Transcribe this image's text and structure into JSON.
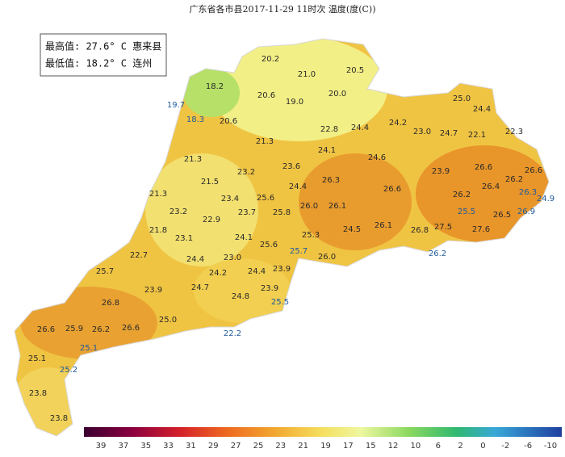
{
  "title": "广东省各市县2017-11-29 11时次 温度(度(C))",
  "summary": [
    "最高值: 27.6° C 惠来县",
    "最低值: 18.2° C 连州"
  ],
  "stations": [
    "20.2",
    "21.0",
    "20.5",
    "18.2",
    "20.6",
    "19.0",
    "20.0",
    "19.7",
    "18.3",
    "20.6",
    "25.0",
    "24.4",
    "22.8",
    "24.4",
    "24.2",
    "23.0",
    "24.7",
    "22.1",
    "22.3",
    "21.3",
    "24.1",
    "24.6",
    "21.3",
    "23.6",
    "23.2",
    "23.9",
    "26.6",
    "26.6",
    "26.2",
    "26.3",
    "21.5",
    "24.4",
    "26.4",
    "26.3",
    "24.9",
    "26.6",
    "21.3",
    "25.6",
    "23.4",
    "26.2",
    "26.0",
    "26.1",
    "23.2",
    "23.7",
    "25.8",
    "25.5",
    "26.5",
    "26.9",
    "22.9",
    "24.5",
    "26.1",
    "26.8",
    "27.5",
    "27.6",
    "21.8",
    "25.3",
    "23.1",
    "24.1",
    "25.6",
    "25.7",
    "22.7",
    "24.4",
    "23.0",
    "26.0",
    "26.2",
    "25.7",
    "24.2",
    "24.4",
    "23.9",
    "26.8",
    "23.9",
    "24.7",
    "23.9",
    "24.8",
    "25.5",
    "25.0",
    "26.6",
    "25.9",
    "26.2",
    "26.6",
    "22.2",
    "25.1",
    "25.1",
    "25.2",
    "23.8",
    "23.8"
  ],
  "legend": [
    "39",
    "37",
    "35",
    "33",
    "31",
    "29",
    "27",
    "25",
    "23",
    "21",
    "19",
    "17",
    "15",
    "12",
    "10",
    "6",
    "2",
    "0",
    "-2",
    "-6",
    "-10"
  ]
}
